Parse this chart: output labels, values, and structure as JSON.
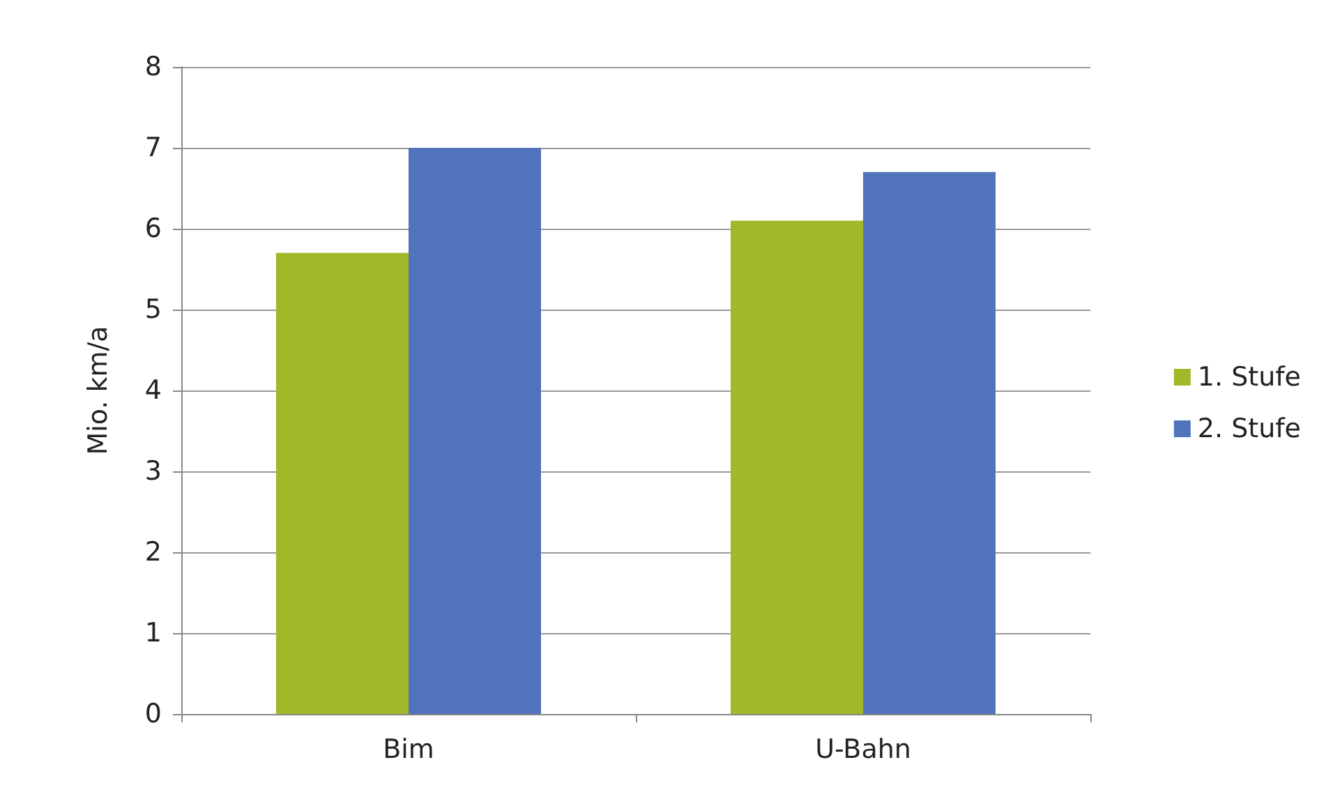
{
  "chart_data": {
    "type": "bar",
    "ylabel": "Mio. km/a",
    "categories": [
      "Bim",
      "U-Bahn"
    ],
    "series": [
      {
        "name": "1. Stufe",
        "color": "#a2b829",
        "values": [
          5.7,
          6.1
        ]
      },
      {
        "name": "2. Stufe",
        "color": "#5173bb",
        "values": [
          7.0,
          6.7
        ]
      }
    ],
    "ylim": [
      0,
      8
    ],
    "yticks": [
      0,
      1,
      2,
      3,
      4,
      5,
      6,
      7,
      8
    ],
    "grid": "y",
    "legend": "right"
  }
}
